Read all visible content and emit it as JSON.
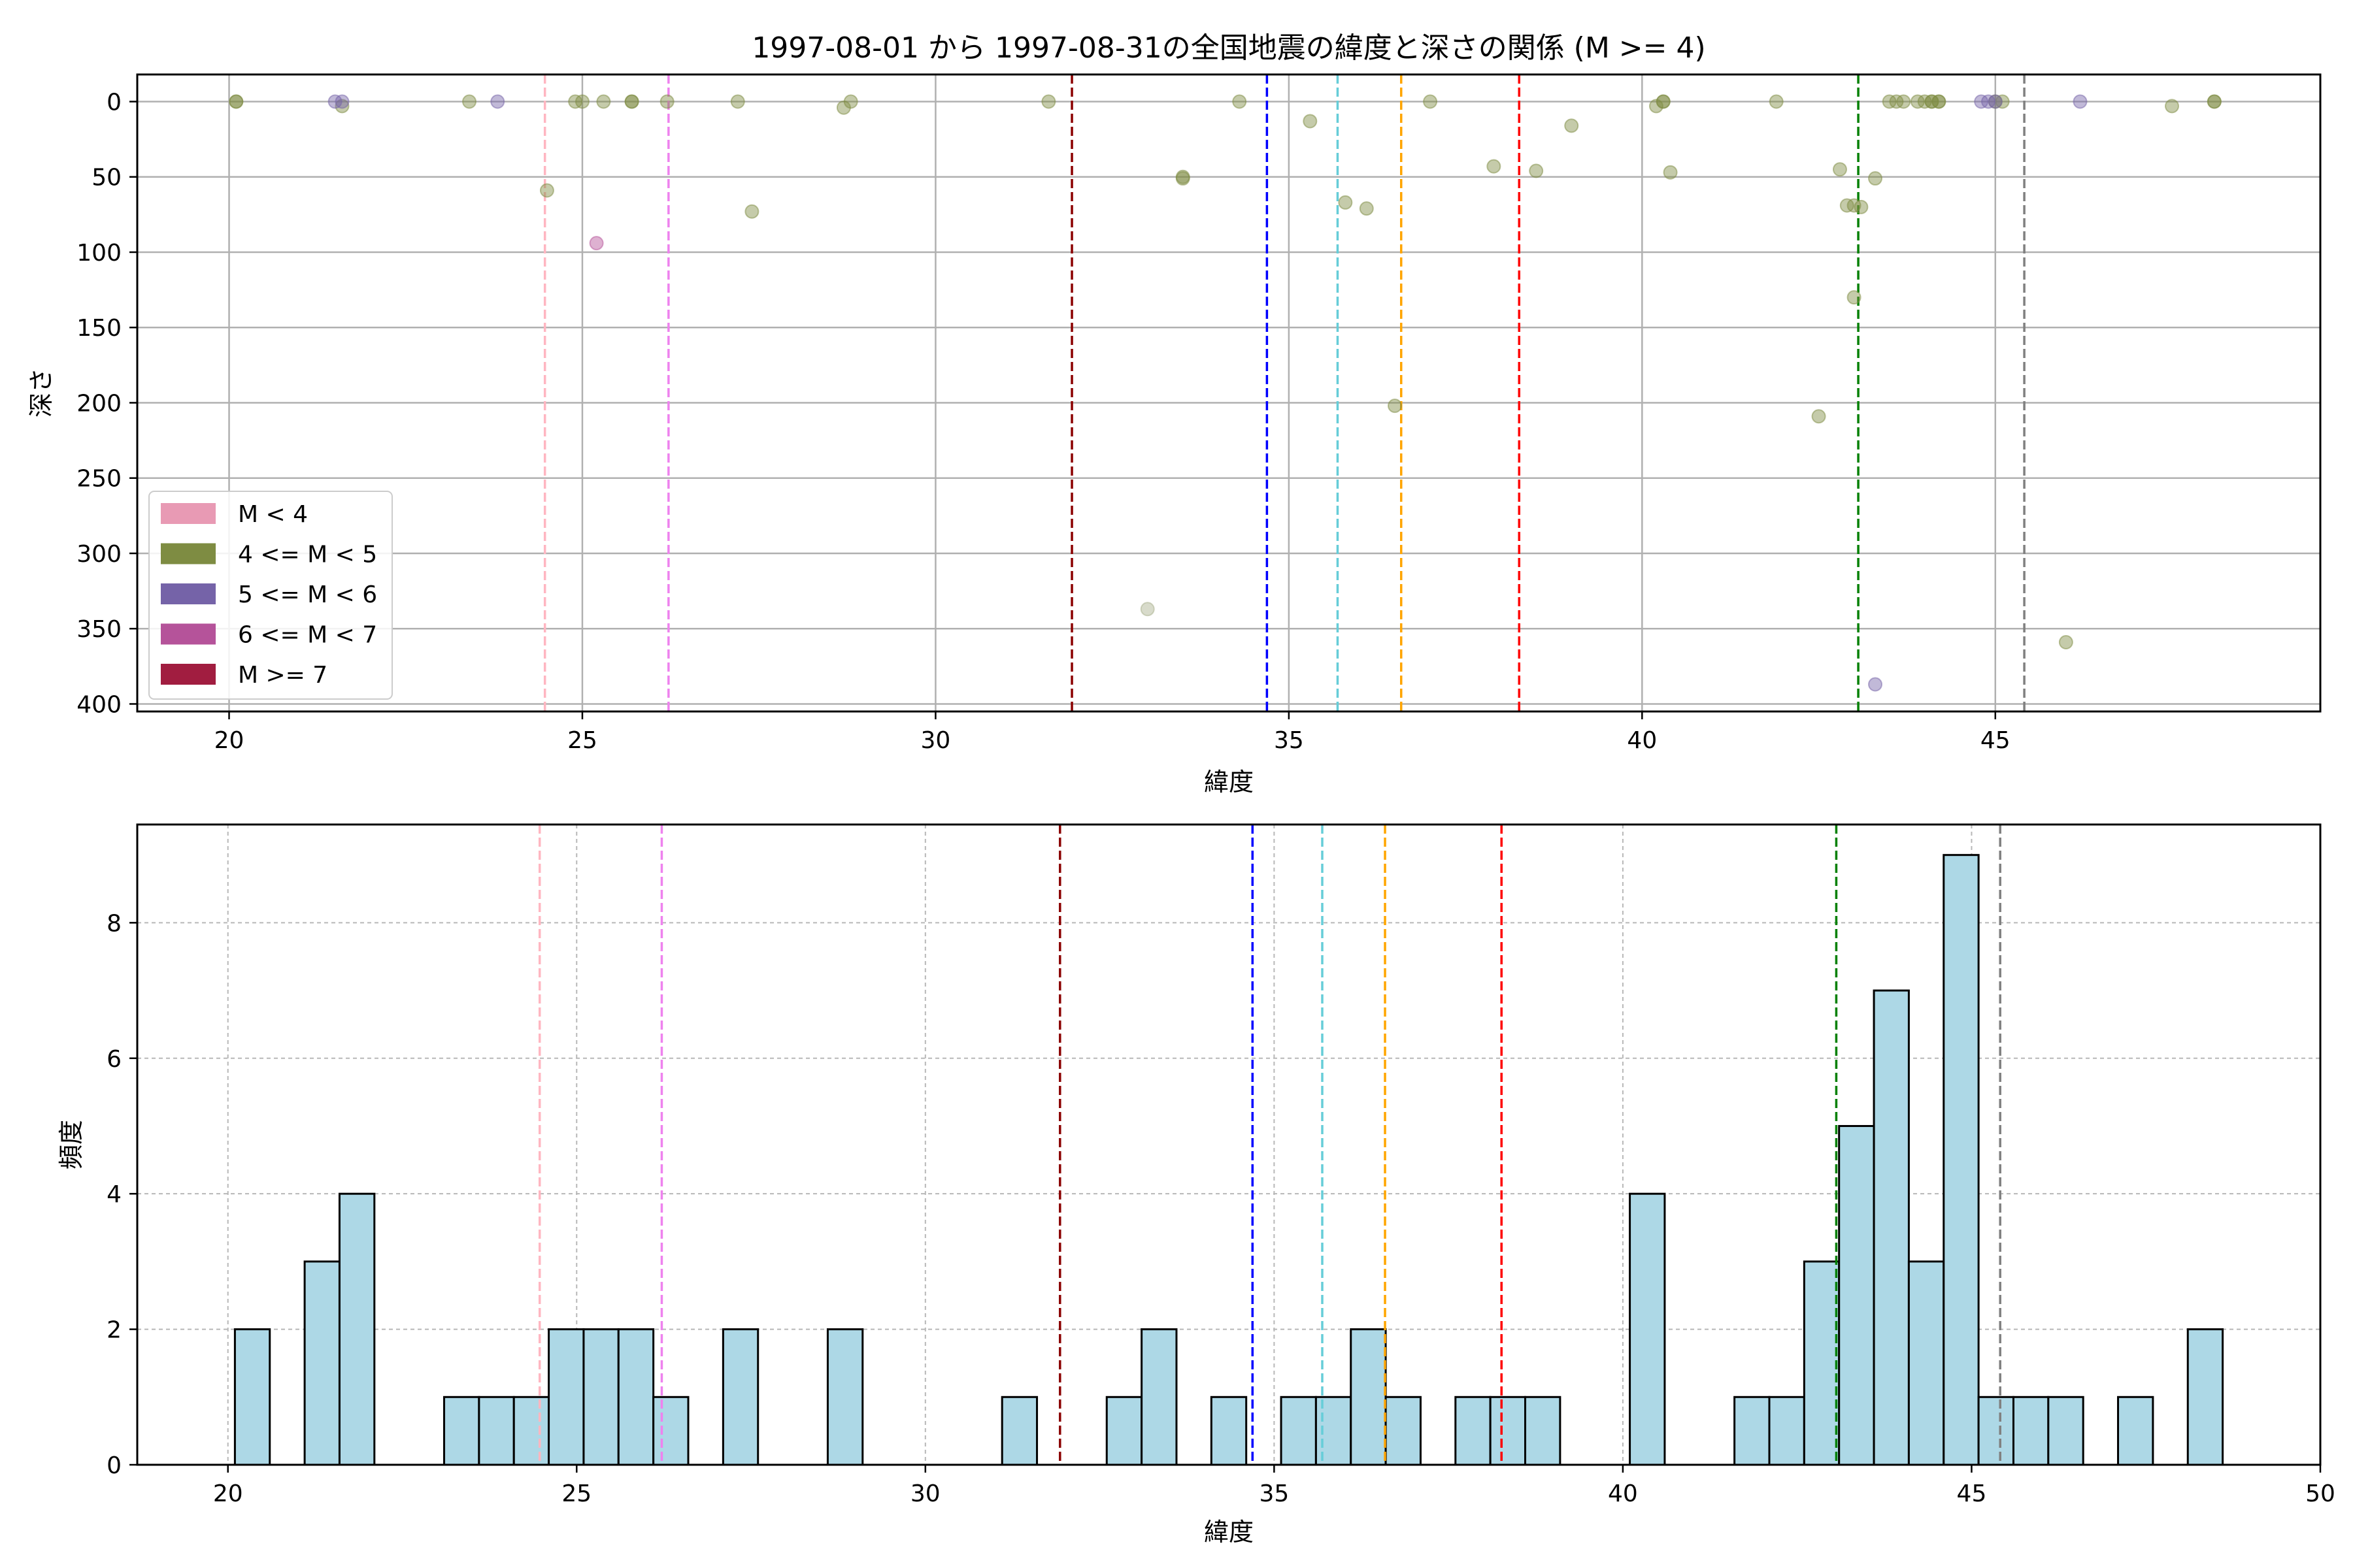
{
  "chart_data": [
    {
      "type": "scatter",
      "title": "1997-08-01 から 1997-08-31の全国地震の緯度と深さの関係 (M >= 4)",
      "xlabel": "緯度",
      "ylabel": "深さ",
      "xlim": [
        18.7,
        49.6
      ],
      "ylim": [
        405,
        -18
      ],
      "y_inverted": true,
      "grid": true,
      "legend_position": "lower-left",
      "xticks": [
        20,
        25,
        30,
        35,
        40,
        45
      ],
      "yticks": [
        0,
        50,
        100,
        150,
        200,
        250,
        300,
        350,
        400
      ],
      "legend": [
        {
          "label": "M < 4",
          "color": "#e89ab4"
        },
        {
          "label": "4 <= M < 5",
          "color": "#7e8c42"
        },
        {
          "label": "5 <= M < 6",
          "color": "#7563a8"
        },
        {
          "label": "6 <= M < 7",
          "color": "#b5539a"
        },
        {
          "label": "M >= 7",
          "color": "#a11d40"
        }
      ],
      "series": [
        {
          "class": "4 <= M < 5",
          "color": "#7e8c42",
          "points": [
            [
              20.1,
              0
            ],
            [
              20.1,
              0
            ],
            [
              21.6,
              3
            ],
            [
              23.4,
              0
            ],
            [
              24.5,
              59
            ],
            [
              24.9,
              0
            ],
            [
              25.0,
              0
            ],
            [
              25.3,
              0
            ],
            [
              25.7,
              0
            ],
            [
              25.7,
              0
            ],
            [
              26.2,
              0
            ],
            [
              27.2,
              0
            ],
            [
              27.4,
              73
            ],
            [
              28.7,
              4
            ],
            [
              28.8,
              0
            ],
            [
              31.6,
              0
            ],
            [
              33.5,
              51
            ],
            [
              33.5,
              50
            ],
            [
              34.3,
              0
            ],
            [
              35.3,
              13
            ],
            [
              35.8,
              67
            ],
            [
              36.1,
              71
            ],
            [
              36.5,
              202
            ],
            [
              37.0,
              0
            ],
            [
              37.9,
              43
            ],
            [
              38.5,
              46
            ],
            [
              39.0,
              16
            ],
            [
              40.2,
              3
            ],
            [
              40.3,
              0
            ],
            [
              40.3,
              0
            ],
            [
              40.4,
              47
            ],
            [
              41.9,
              0
            ],
            [
              42.5,
              209
            ],
            [
              42.8,
              45
            ],
            [
              42.9,
              69
            ],
            [
              43.0,
              130
            ],
            [
              43.0,
              69
            ],
            [
              43.1,
              70
            ],
            [
              43.3,
              51
            ],
            [
              43.5,
              0
            ],
            [
              43.6,
              0
            ],
            [
              43.7,
              0
            ],
            [
              43.9,
              0
            ],
            [
              44.0,
              0
            ],
            [
              44.1,
              0
            ],
            [
              44.1,
              0
            ],
            [
              44.2,
              0
            ],
            [
              44.2,
              0
            ],
            [
              45.0,
              0
            ],
            [
              45.1,
              0
            ],
            [
              46.0,
              359
            ],
            [
              47.5,
              3
            ],
            [
              48.1,
              0
            ],
            [
              48.1,
              0
            ]
          ]
        },
        {
          "class": "5 <= M < 6",
          "color": "#7563a8",
          "points": [
            [
              21.5,
              0
            ],
            [
              21.6,
              0
            ],
            [
              23.8,
              0
            ],
            [
              43.3,
              387
            ],
            [
              44.8,
              0
            ],
            [
              44.9,
              0
            ],
            [
              45.0,
              0
            ],
            [
              46.2,
              0
            ]
          ]
        },
        {
          "class": "6 <= M < 7",
          "color": "#b5539a",
          "points": [
            [
              25.2,
              94
            ]
          ]
        },
        {
          "class": "other",
          "color": "#a8b08c",
          "points": [
            [
              33.0,
              337
            ]
          ]
        }
      ],
      "reference_lines": [
        {
          "x": 24.47,
          "color": "#ffb6c1"
        },
        {
          "x": 26.22,
          "color": "#ee82ee"
        },
        {
          "x": 31.93,
          "color": "#8b0000"
        },
        {
          "x": 34.69,
          "color": "#0000ff"
        },
        {
          "x": 35.69,
          "color": "#66cdd8"
        },
        {
          "x": 36.59,
          "color": "#ffa500"
        },
        {
          "x": 38.26,
          "color": "#ff0000"
        },
        {
          "x": 43.06,
          "color": "#008000"
        },
        {
          "x": 45.41,
          "color": "#808080"
        }
      ]
    },
    {
      "type": "bar",
      "subtype": "histogram",
      "xlabel": "緯度",
      "ylabel": "頻度",
      "xlim": [
        18.7,
        50
      ],
      "ylim": [
        0,
        9.45
      ],
      "grid": true,
      "xticks": [
        20,
        25,
        30,
        35,
        40,
        45,
        50
      ],
      "yticks": [
        0,
        2,
        4,
        6,
        8
      ],
      "bar_color": "#add8e6",
      "edge_color": "#000000",
      "bin_width": 0.5,
      "bins": [
        {
          "x": 20.1,
          "count": 2
        },
        {
          "x": 21.1,
          "count": 3
        },
        {
          "x": 21.6,
          "count": 4
        },
        {
          "x": 23.1,
          "count": 1
        },
        {
          "x": 23.6,
          "count": 1
        },
        {
          "x": 24.1,
          "count": 1
        },
        {
          "x": 24.6,
          "count": 2
        },
        {
          "x": 25.1,
          "count": 2
        },
        {
          "x": 25.6,
          "count": 2
        },
        {
          "x": 26.1,
          "count": 1
        },
        {
          "x": 27.1,
          "count": 2
        },
        {
          "x": 28.6,
          "count": 2
        },
        {
          "x": 31.1,
          "count": 1
        },
        {
          "x": 32.6,
          "count": 1
        },
        {
          "x": 33.1,
          "count": 2
        },
        {
          "x": 34.1,
          "count": 1
        },
        {
          "x": 35.1,
          "count": 1
        },
        {
          "x": 35.6,
          "count": 1
        },
        {
          "x": 36.1,
          "count": 2
        },
        {
          "x": 36.6,
          "count": 1
        },
        {
          "x": 37.6,
          "count": 1
        },
        {
          "x": 38.1,
          "count": 1
        },
        {
          "x": 38.6,
          "count": 1
        },
        {
          "x": 40.1,
          "count": 4
        },
        {
          "x": 41.6,
          "count": 1
        },
        {
          "x": 42.1,
          "count": 1
        },
        {
          "x": 42.6,
          "count": 3
        },
        {
          "x": 43.1,
          "count": 5
        },
        {
          "x": 43.6,
          "count": 7
        },
        {
          "x": 44.1,
          "count": 3
        },
        {
          "x": 44.6,
          "count": 9
        },
        {
          "x": 45.1,
          "count": 1
        },
        {
          "x": 45.6,
          "count": 1
        },
        {
          "x": 46.1,
          "count": 1
        },
        {
          "x": 47.1,
          "count": 1
        },
        {
          "x": 48.1,
          "count": 2
        }
      ],
      "reference_lines": [
        {
          "x": 24.47,
          "color": "#ffb6c1"
        },
        {
          "x": 26.22,
          "color": "#ee82ee"
        },
        {
          "x": 31.93,
          "color": "#8b0000"
        },
        {
          "x": 34.69,
          "color": "#0000ff"
        },
        {
          "x": 35.69,
          "color": "#66cdd8"
        },
        {
          "x": 36.59,
          "color": "#ffa500"
        },
        {
          "x": 38.26,
          "color": "#ff0000"
        },
        {
          "x": 43.06,
          "color": "#008000"
        },
        {
          "x": 45.41,
          "color": "#808080"
        }
      ]
    }
  ]
}
